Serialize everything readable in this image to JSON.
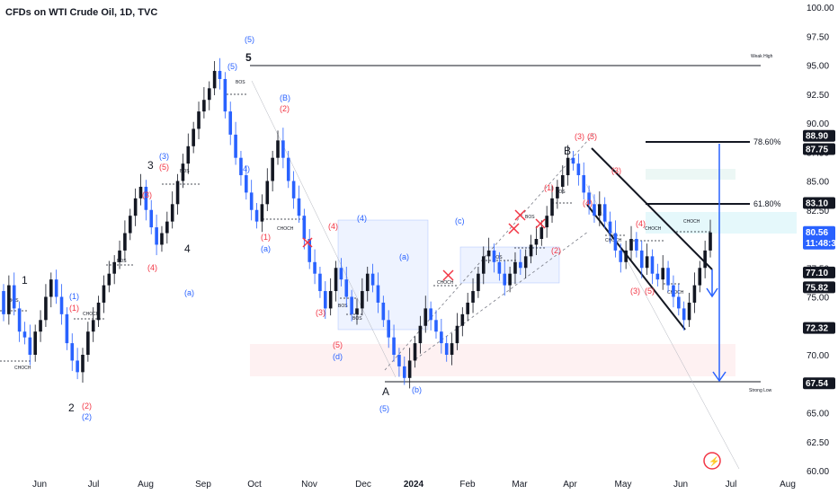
{
  "title": "CFDs on WTI Crude Oil, 1D, TVC",
  "chart_data": {
    "type": "candlestick",
    "y_axis": {
      "ticks": [
        "100.00",
        "97.50",
        "95.00",
        "92.50",
        "90.00",
        "87.50",
        "85.00",
        "82.50",
        "80.00",
        "77.50",
        "75.00",
        "72.50",
        "70.00",
        "67.50",
        "65.00",
        "62.50",
        "60.00"
      ],
      "ylim": [
        60,
        100
      ]
    },
    "x_axis": {
      "ticks": [
        "Jun",
        "Jul",
        "Aug",
        "Sep",
        "Oct",
        "Nov",
        "Dec",
        "2024",
        "Feb",
        "Mar",
        "Apr",
        "May",
        "Jun",
        "Jul",
        "Aug"
      ]
    },
    "price_tags": [
      {
        "label": "88.90",
        "value": 88.9,
        "style": "dark"
      },
      {
        "label": "87.75",
        "value": 87.75,
        "style": "dark"
      },
      {
        "label": "83.10",
        "value": 83.1,
        "style": "dark"
      },
      {
        "label": "80.56",
        "value": 80.56,
        "style": "blue",
        "sub": "11:48:31"
      },
      {
        "label": "77.10",
        "value": 77.1,
        "style": "dark"
      },
      {
        "label": "75.82",
        "value": 75.82,
        "style": "dark"
      },
      {
        "label": "72.32",
        "value": 72.32,
        "style": "dark"
      },
      {
        "label": "67.54",
        "value": 67.54,
        "style": "dark"
      }
    ],
    "fib_levels": [
      {
        "label": "78.60%",
        "value": 87.75
      },
      {
        "label": "61.80%",
        "value": 83.1
      }
    ],
    "line_labels": [
      {
        "label": "Weak High",
        "value": 95.0
      },
      {
        "label": "Strong Low",
        "value": 67.5
      }
    ],
    "wave_labels_major": [
      "1",
      "2",
      "3",
      "4",
      "5",
      "A",
      "B"
    ],
    "wave_labels_minor": [
      "(1)",
      "(2)",
      "(3)",
      "(4)",
      "(5)",
      "(a)",
      "(b)",
      "(c)",
      "(d)",
      "(B)"
    ],
    "structure_labels": [
      "BOS",
      "CHOCH"
    ],
    "colors": {
      "up": "#131722",
      "down": "#2962ff",
      "red_label": "#f23645",
      "blue_label": "#2962ff",
      "tag_dark": "#131722",
      "tag_blue": "#2962ff"
    },
    "candles_approx": [
      [
        75.5,
        73.5
      ],
      [
        73.5,
        76
      ],
      [
        76,
        74
      ],
      [
        74,
        72
      ],
      [
        72,
        71.5
      ],
      [
        71.5,
        70
      ],
      [
        70,
        72
      ],
      [
        72,
        73
      ],
      [
        73,
        75
      ],
      [
        75,
        76.5
      ],
      [
        76.5,
        75
      ],
      [
        75,
        73.5
      ],
      [
        73.5,
        71
      ],
      [
        71,
        69.5
      ],
      [
        69.5,
        68.5
      ],
      [
        68.5,
        70
      ],
      [
        70,
        72
      ],
      [
        72,
        73
      ],
      [
        73,
        74.5
      ],
      [
        74.5,
        76
      ],
      [
        76,
        77
      ],
      [
        77,
        78
      ],
      [
        78,
        79
      ],
      [
        79,
        80.5
      ],
      [
        80.5,
        82
      ],
      [
        82,
        83.5
      ],
      [
        83.5,
        84.5
      ],
      [
        84.5,
        82.5
      ],
      [
        82.5,
        81
      ],
      [
        81,
        79.5
      ],
      [
        79.5,
        80.5
      ],
      [
        80.5,
        81.5
      ],
      [
        81.5,
        83
      ],
      [
        83,
        85
      ],
      [
        85,
        86.5
      ],
      [
        86.5,
        88
      ],
      [
        88,
        89.5
      ],
      [
        89.5,
        91
      ],
      [
        91,
        92
      ],
      [
        92,
        93
      ],
      [
        93,
        94.5
      ],
      [
        94.5,
        93.8
      ],
      [
        93.8,
        91
      ],
      [
        91,
        89
      ],
      [
        89,
        87
      ],
      [
        87,
        85.5
      ],
      [
        85.5,
        84
      ],
      [
        84,
        82.5
      ],
      [
        82.5,
        81.5
      ],
      [
        81.5,
        83
      ],
      [
        83,
        85
      ],
      [
        85,
        87
      ],
      [
        87,
        88.5
      ],
      [
        88.5,
        87
      ],
      [
        87,
        85
      ],
      [
        85,
        83.5
      ],
      [
        83.5,
        82
      ],
      [
        82,
        80
      ],
      [
        80,
        78
      ],
      [
        78,
        77
      ],
      [
        77,
        75.5
      ],
      [
        75.5,
        74
      ],
      [
        74,
        75.5
      ],
      [
        75.5,
        77.5
      ],
      [
        77.5,
        76.5
      ],
      [
        76.5,
        75
      ],
      [
        75,
        73.5
      ],
      [
        73.5,
        74
      ],
      [
        74,
        75.5
      ],
      [
        75.5,
        77
      ],
      [
        77,
        76
      ],
      [
        76,
        74.5
      ],
      [
        74.5,
        73
      ],
      [
        73,
        71.5
      ],
      [
        71.5,
        70
      ],
      [
        70,
        69
      ],
      [
        69,
        68
      ],
      [
        68,
        69.5
      ],
      [
        69.5,
        71
      ],
      [
        71,
        72.5
      ],
      [
        72.5,
        74
      ],
      [
        74,
        73
      ],
      [
        73,
        72
      ],
      [
        72,
        71
      ],
      [
        71,
        70
      ],
      [
        70,
        71
      ],
      [
        71,
        72.5
      ],
      [
        72.5,
        73.5
      ],
      [
        73.5,
        74.5
      ],
      [
        74.5,
        75.5
      ],
      [
        75.5,
        77
      ],
      [
        77,
        78.5
      ],
      [
        78.5,
        79
      ],
      [
        79,
        78
      ],
      [
        78,
        77
      ],
      [
        77,
        76
      ],
      [
        76,
        77
      ],
      [
        77,
        78
      ],
      [
        78,
        77.5
      ],
      [
        77.5,
        78.5
      ],
      [
        78.5,
        79.5
      ],
      [
        79.5,
        80
      ],
      [
        80,
        81
      ],
      [
        81,
        82
      ],
      [
        82,
        83.5
      ],
      [
        83.5,
        84.5
      ],
      [
        84.5,
        85.5
      ],
      [
        85.5,
        87
      ],
      [
        87,
        86.5
      ],
      [
        86.5,
        85.5
      ],
      [
        85.5,
        84
      ],
      [
        84,
        83
      ],
      [
        83,
        82
      ],
      [
        82,
        83
      ],
      [
        83,
        81.5
      ],
      [
        81.5,
        80.5
      ],
      [
        80.5,
        79
      ],
      [
        79,
        78
      ],
      [
        78,
        79
      ],
      [
        79,
        80
      ],
      [
        80,
        79
      ],
      [
        79,
        77.5
      ],
      [
        77.5,
        78.5
      ],
      [
        78.5,
        77
      ],
      [
        77,
        76.5
      ],
      [
        76.5,
        77.5
      ],
      [
        77.5,
        76
      ],
      [
        76,
        75
      ],
      [
        75,
        74
      ],
      [
        74,
        73
      ],
      [
        73,
        74.5
      ],
      [
        74.5,
        76
      ],
      [
        76,
        77.5
      ],
      [
        77.5,
        79
      ],
      [
        79,
        80.56
      ]
    ]
  }
}
